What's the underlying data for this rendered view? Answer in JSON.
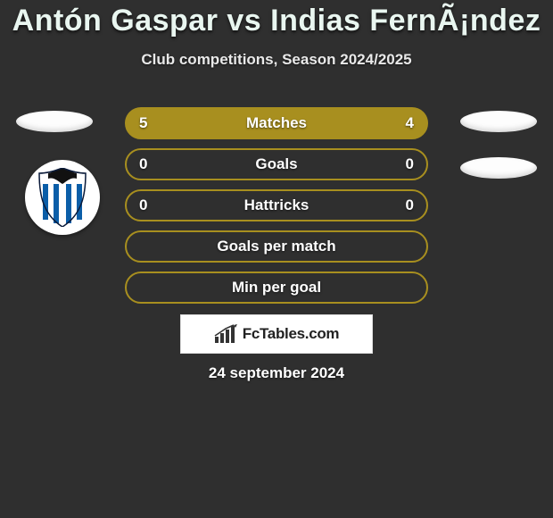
{
  "title": "Antón Gaspar vs Indias FernÃ¡ndez",
  "subtitle": "Club competitions, Season 2024/2025",
  "date": "24 september 2024",
  "brand": "FcTables.com",
  "colors": {
    "border_olive": "#a88f1f",
    "fill_olive": "#a88f1f",
    "bg": "#2f2f2f",
    "white": "#ffffff"
  },
  "rows": [
    {
      "label": "Matches",
      "left": "5",
      "right": "4",
      "style": "fill"
    },
    {
      "label": "Goals",
      "left": "0",
      "right": "0",
      "style": "outline"
    },
    {
      "label": "Hattricks",
      "left": "0",
      "right": "0",
      "style": "outline"
    },
    {
      "label": "Goals per match",
      "left": "",
      "right": "",
      "style": "outline"
    },
    {
      "label": "Min per goal",
      "left": "",
      "right": "",
      "style": "outline"
    }
  ],
  "badge_stripes": [
    "#0b1b3a",
    "#ffffff"
  ]
}
